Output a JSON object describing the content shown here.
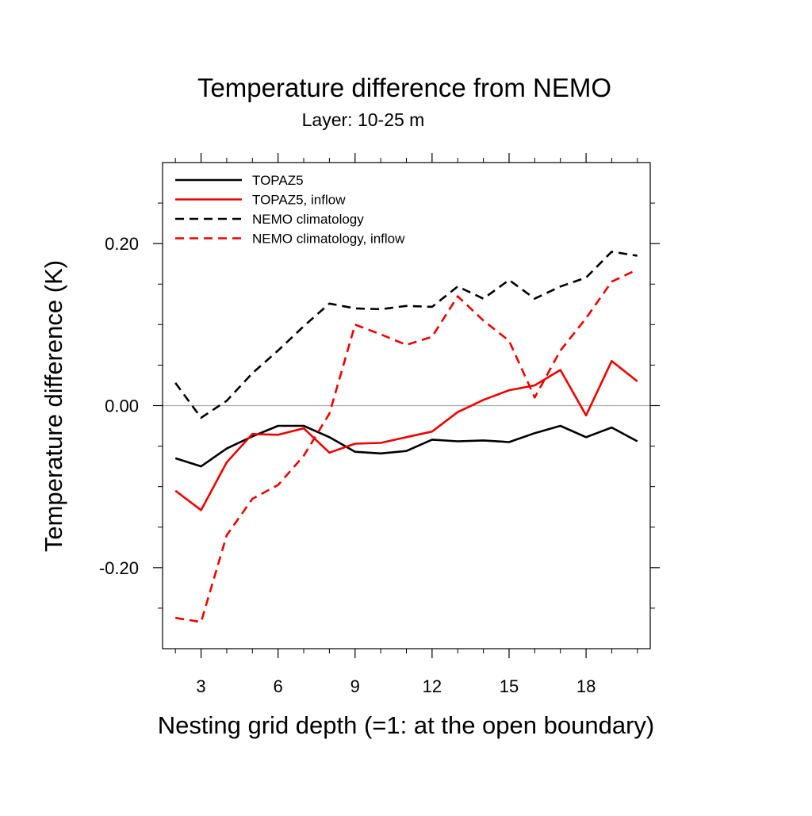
{
  "chart_data": {
    "type": "line",
    "title": "Temperature difference from NEMO",
    "subtitle": "Layer: 10-25 m",
    "xlabel": "Nesting grid depth (=1: at the open boundary)",
    "ylabel": "Temperature difference (K)",
    "xlim": [
      1.5,
      20.5
    ],
    "ylim": [
      -0.3,
      0.3
    ],
    "xticks": [
      3,
      6,
      9,
      12,
      15,
      18
    ],
    "xtick_labels": [
      "3",
      "6",
      "9",
      "12",
      "15",
      "18"
    ],
    "xminor": [
      2,
      4,
      5,
      7,
      8,
      10,
      11,
      13,
      14,
      16,
      17,
      19,
      20
    ],
    "yticks": [
      -0.2,
      0.0,
      0.2
    ],
    "ytick_labels": [
      "-0.20",
      "0.00",
      "0.20"
    ],
    "yminor": [
      -0.25,
      -0.15,
      -0.1,
      -0.05,
      0.05,
      0.1,
      0.15,
      0.25
    ],
    "zero_line": true,
    "grid": false,
    "legend_position": "top-left",
    "x": [
      2,
      3,
      4,
      5,
      6,
      7,
      8,
      9,
      10,
      11,
      12,
      13,
      14,
      15,
      16,
      17,
      18,
      19,
      20
    ],
    "series": [
      {
        "name": "TOPAZ5",
        "color": "#000000",
        "dash": "solid",
        "values": [
          -0.065,
          -0.075,
          -0.053,
          -0.038,
          -0.025,
          -0.025,
          -0.039,
          -0.057,
          -0.059,
          -0.056,
          -0.042,
          -0.044,
          -0.043,
          -0.045,
          -0.034,
          -0.025,
          -0.039,
          -0.027,
          -0.044
        ]
      },
      {
        "name": "TOPAZ5, inflow",
        "color": "#ee0000",
        "dash": "solid",
        "values": [
          -0.105,
          -0.129,
          -0.07,
          -0.035,
          -0.036,
          -0.028,
          -0.058,
          -0.047,
          -0.046,
          -0.039,
          -0.032,
          -0.008,
          0.007,
          0.019,
          0.025,
          0.044,
          -0.012,
          0.055,
          0.03
        ]
      },
      {
        "name": "NEMO climatology",
        "color": "#000000",
        "dash": "dashed",
        "values": [
          0.028,
          -0.015,
          0.006,
          0.04,
          0.068,
          0.098,
          0.126,
          0.12,
          0.119,
          0.123,
          0.122,
          0.147,
          0.132,
          0.155,
          0.132,
          0.147,
          0.158,
          0.19,
          0.185
        ]
      },
      {
        "name": "NEMO climatology, inflow",
        "color": "#ee0000",
        "dash": "dashed",
        "values": [
          -0.262,
          -0.267,
          -0.16,
          -0.115,
          -0.098,
          -0.062,
          -0.01,
          0.1,
          0.088,
          0.075,
          0.085,
          0.135,
          0.105,
          0.08,
          0.01,
          0.068,
          0.108,
          0.153,
          0.168
        ]
      }
    ]
  }
}
